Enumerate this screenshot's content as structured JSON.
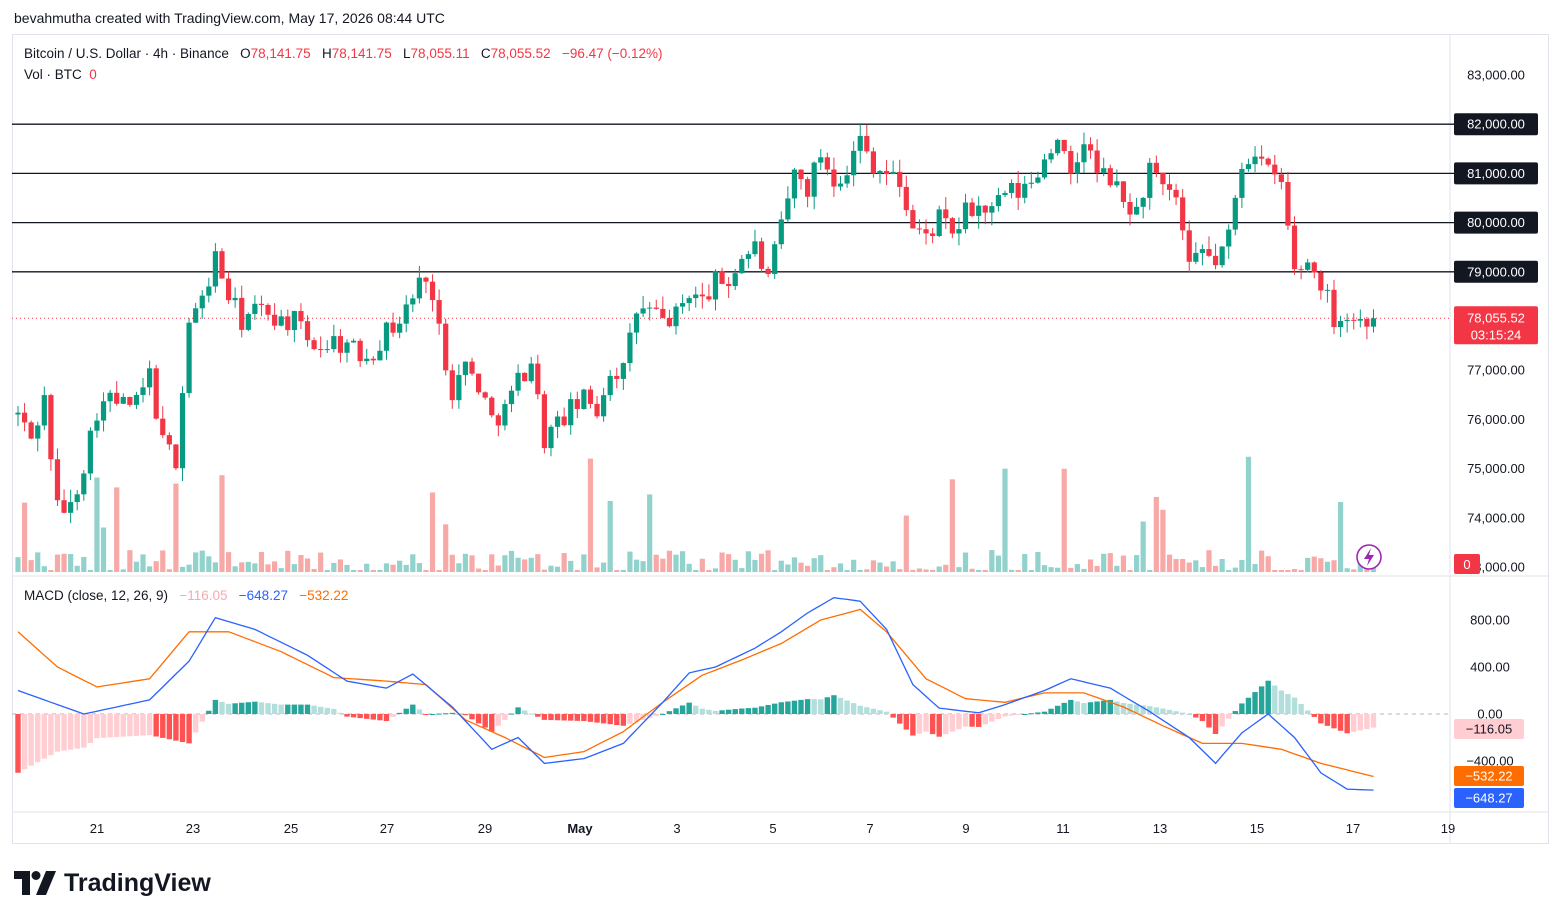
{
  "header": {
    "credit": "bevahmutha created with TradingView.com, May 17, 2026 08:44 UTC"
  },
  "legend": {
    "symbol": "Bitcoin / U.S. Dollar · 4h · Binance",
    "o_label": "O",
    "o_value": "78,141.75",
    "h_label": "H",
    "h_value": "78,141.75",
    "l_label": "L",
    "l_value": "78,055.11",
    "c_label": "C",
    "c_value": "78,055.52",
    "change": "−96.47 (−0.12%)",
    "vol_label": "Vol · BTC",
    "vol_value": "0",
    "macd_label": "MACD (close, 12, 26, 9)",
    "macd_hist": "−116.05",
    "macd_value": "−648.27",
    "macd_signal": "−532.22"
  },
  "price_axis": {
    "labels": [
      "83,000.00",
      "82,000.00",
      "81,000.00",
      "80,000.00",
      "79,000.00",
      "77,000.00",
      "76,000.00",
      "75,000.00",
      "74,000.00",
      "73,000.00"
    ],
    "current_price": "78,055.52",
    "countdown": "03:15:24",
    "volume_badge": "0"
  },
  "macd_axis": {
    "labels": [
      "800.00",
      "400.00",
      "0.00",
      "−400.00"
    ],
    "hist_badge": "−116.05",
    "signal_badge": "−532.22",
    "macd_badge": "−648.27"
  },
  "time_axis": {
    "labels": [
      "21",
      "23",
      "25",
      "27",
      "29",
      "May",
      "3",
      "5",
      "7",
      "9",
      "11",
      "13",
      "15",
      "17",
      "19"
    ]
  },
  "colors": {
    "up": "#089981",
    "down": "#f23645",
    "vol_up": "#92d2cc",
    "vol_down": "#f7a9a7",
    "macd": "#2962ff",
    "signal": "#ff6d00",
    "hist_up_strong": "#26a69a",
    "hist_up_weak": "#b2dfdb",
    "hist_down_strong": "#ff5252",
    "hist_down_weak": "#ffcdd2"
  },
  "footer": {
    "brand": "TradingView"
  },
  "chart_data": {
    "type": "candlestick",
    "title": "Bitcoin / U.S. Dollar · 4h · Binance",
    "timeframe": "4h",
    "x_range": [
      "Apr 20",
      "May 19"
    ],
    "ylim": [
      73000,
      83800
    ],
    "horizontal_levels": [
      82000,
      81000,
      80000,
      79000
    ],
    "last_price": 78055.52,
    "price_path": [
      [
        0,
        76100
      ],
      [
        2,
        75600
      ],
      [
        4,
        76400
      ],
      [
        6,
        74200
      ],
      [
        8,
        74200
      ],
      [
        10,
        75100
      ],
      [
        12,
        76200
      ],
      [
        14,
        76400
      ],
      [
        16,
        76300
      ],
      [
        18,
        76300
      ],
      [
        20,
        76900
      ],
      [
        22,
        75500
      ],
      [
        24,
        75200
      ],
      [
        26,
        78000
      ],
      [
        28,
        78400
      ],
      [
        30,
        79300
      ],
      [
        32,
        78500
      ],
      [
        34,
        78000
      ],
      [
        36,
        78200
      ],
      [
        38,
        78200
      ],
      [
        40,
        78000
      ],
      [
        42,
        78000
      ],
      [
        44,
        77600
      ],
      [
        46,
        77500
      ],
      [
        48,
        77600
      ],
      [
        50,
        77500
      ],
      [
        52,
        77300
      ],
      [
        54,
        77400
      ],
      [
        56,
        77800
      ],
      [
        58,
        78000
      ],
      [
        60,
        78500
      ],
      [
        62,
        79000
      ],
      [
        64,
        77800
      ],
      [
        66,
        76600
      ],
      [
        68,
        77100
      ],
      [
        70,
        76700
      ],
      [
        72,
        76000
      ],
      [
        74,
        76200
      ],
      [
        76,
        76800
      ],
      [
        78,
        77200
      ],
      [
        80,
        75600
      ],
      [
        82,
        75900
      ],
      [
        84,
        76200
      ],
      [
        86,
        76400
      ],
      [
        88,
        76200
      ],
      [
        90,
        77000
      ],
      [
        92,
        77000
      ],
      [
        94,
        78200
      ],
      [
        96,
        78200
      ],
      [
        98,
        78000
      ],
      [
        100,
        78100
      ],
      [
        102,
        78600
      ],
      [
        104,
        78400
      ],
      [
        106,
        78800
      ],
      [
        108,
        78800
      ],
      [
        110,
        79300
      ],
      [
        112,
        79500
      ],
      [
        114,
        78800
      ],
      [
        116,
        79900
      ],
      [
        118,
        81000
      ],
      [
        120,
        80700
      ],
      [
        122,
        81400
      ],
      [
        124,
        80900
      ],
      [
        126,
        81100
      ],
      [
        128,
        81700
      ],
      [
        130,
        81200
      ],
      [
        132,
        81000
      ],
      [
        134,
        80800
      ],
      [
        136,
        79900
      ],
      [
        138,
        79700
      ],
      [
        140,
        80100
      ],
      [
        142,
        79700
      ],
      [
        144,
        80200
      ],
      [
        146,
        80300
      ],
      [
        148,
        80200
      ],
      [
        150,
        80600
      ],
      [
        152,
        80600
      ],
      [
        154,
        80800
      ],
      [
        156,
        81300
      ],
      [
        158,
        81800
      ],
      [
        160,
        80800
      ],
      [
        162,
        81700
      ],
      [
        164,
        81000
      ],
      [
        166,
        80900
      ],
      [
        168,
        80400
      ],
      [
        170,
        80200
      ],
      [
        172,
        81100
      ],
      [
        174,
        80600
      ],
      [
        176,
        80500
      ],
      [
        178,
        79000
      ],
      [
        180,
        79400
      ],
      [
        182,
        79200
      ],
      [
        184,
        79700
      ],
      [
        186,
        81200
      ],
      [
        188,
        81500
      ],
      [
        190,
        81000
      ],
      [
        192,
        80800
      ],
      [
        194,
        79000
      ],
      [
        196,
        79200
      ],
      [
        198,
        78800
      ],
      [
        200,
        78100
      ],
      [
        202,
        78100
      ],
      [
        204,
        78000
      ],
      [
        206,
        78055
      ]
    ],
    "macd_path": [
      [
        0,
        200
      ],
      [
        10,
        0
      ],
      [
        20,
        120
      ],
      [
        26,
        450
      ],
      [
        30,
        820
      ],
      [
        36,
        720
      ],
      [
        44,
        500
      ],
      [
        50,
        280
      ],
      [
        56,
        220
      ],
      [
        60,
        340
      ],
      [
        66,
        60
      ],
      [
        72,
        -300
      ],
      [
        76,
        -200
      ],
      [
        80,
        -420
      ],
      [
        86,
        -380
      ],
      [
        92,
        -250
      ],
      [
        98,
        100
      ],
      [
        102,
        350
      ],
      [
        106,
        400
      ],
      [
        112,
        560
      ],
      [
        116,
        700
      ],
      [
        120,
        860
      ],
      [
        124,
        990
      ],
      [
        128,
        960
      ],
      [
        132,
        720
      ],
      [
        136,
        250
      ],
      [
        140,
        50
      ],
      [
        146,
        10
      ],
      [
        150,
        80
      ],
      [
        156,
        200
      ],
      [
        160,
        300
      ],
      [
        166,
        220
      ],
      [
        172,
        20
      ],
      [
        178,
        -200
      ],
      [
        182,
        -420
      ],
      [
        186,
        -160
      ],
      [
        190,
        0
      ],
      [
        194,
        -200
      ],
      [
        198,
        -500
      ],
      [
        202,
        -640
      ],
      [
        206,
        -648
      ]
    ],
    "signal_path": [
      [
        0,
        700
      ],
      [
        6,
        400
      ],
      [
        12,
        230
      ],
      [
        20,
        300
      ],
      [
        26,
        700
      ],
      [
        32,
        700
      ],
      [
        40,
        530
      ],
      [
        48,
        310
      ],
      [
        56,
        280
      ],
      [
        62,
        250
      ],
      [
        68,
        -50
      ],
      [
        74,
        -200
      ],
      [
        80,
        -370
      ],
      [
        86,
        -320
      ],
      [
        92,
        -150
      ],
      [
        98,
        100
      ],
      [
        104,
        330
      ],
      [
        110,
        460
      ],
      [
        116,
        600
      ],
      [
        122,
        800
      ],
      [
        128,
        890
      ],
      [
        132,
        700
      ],
      [
        138,
        300
      ],
      [
        144,
        130
      ],
      [
        150,
        100
      ],
      [
        156,
        180
      ],
      [
        162,
        180
      ],
      [
        168,
        60
      ],
      [
        174,
        -100
      ],
      [
        180,
        -250
      ],
      [
        186,
        -250
      ],
      [
        192,
        -300
      ],
      [
        198,
        -420
      ],
      [
        206,
        -532
      ]
    ],
    "macd_ylim": [
      -800,
      1050
    ]
  }
}
